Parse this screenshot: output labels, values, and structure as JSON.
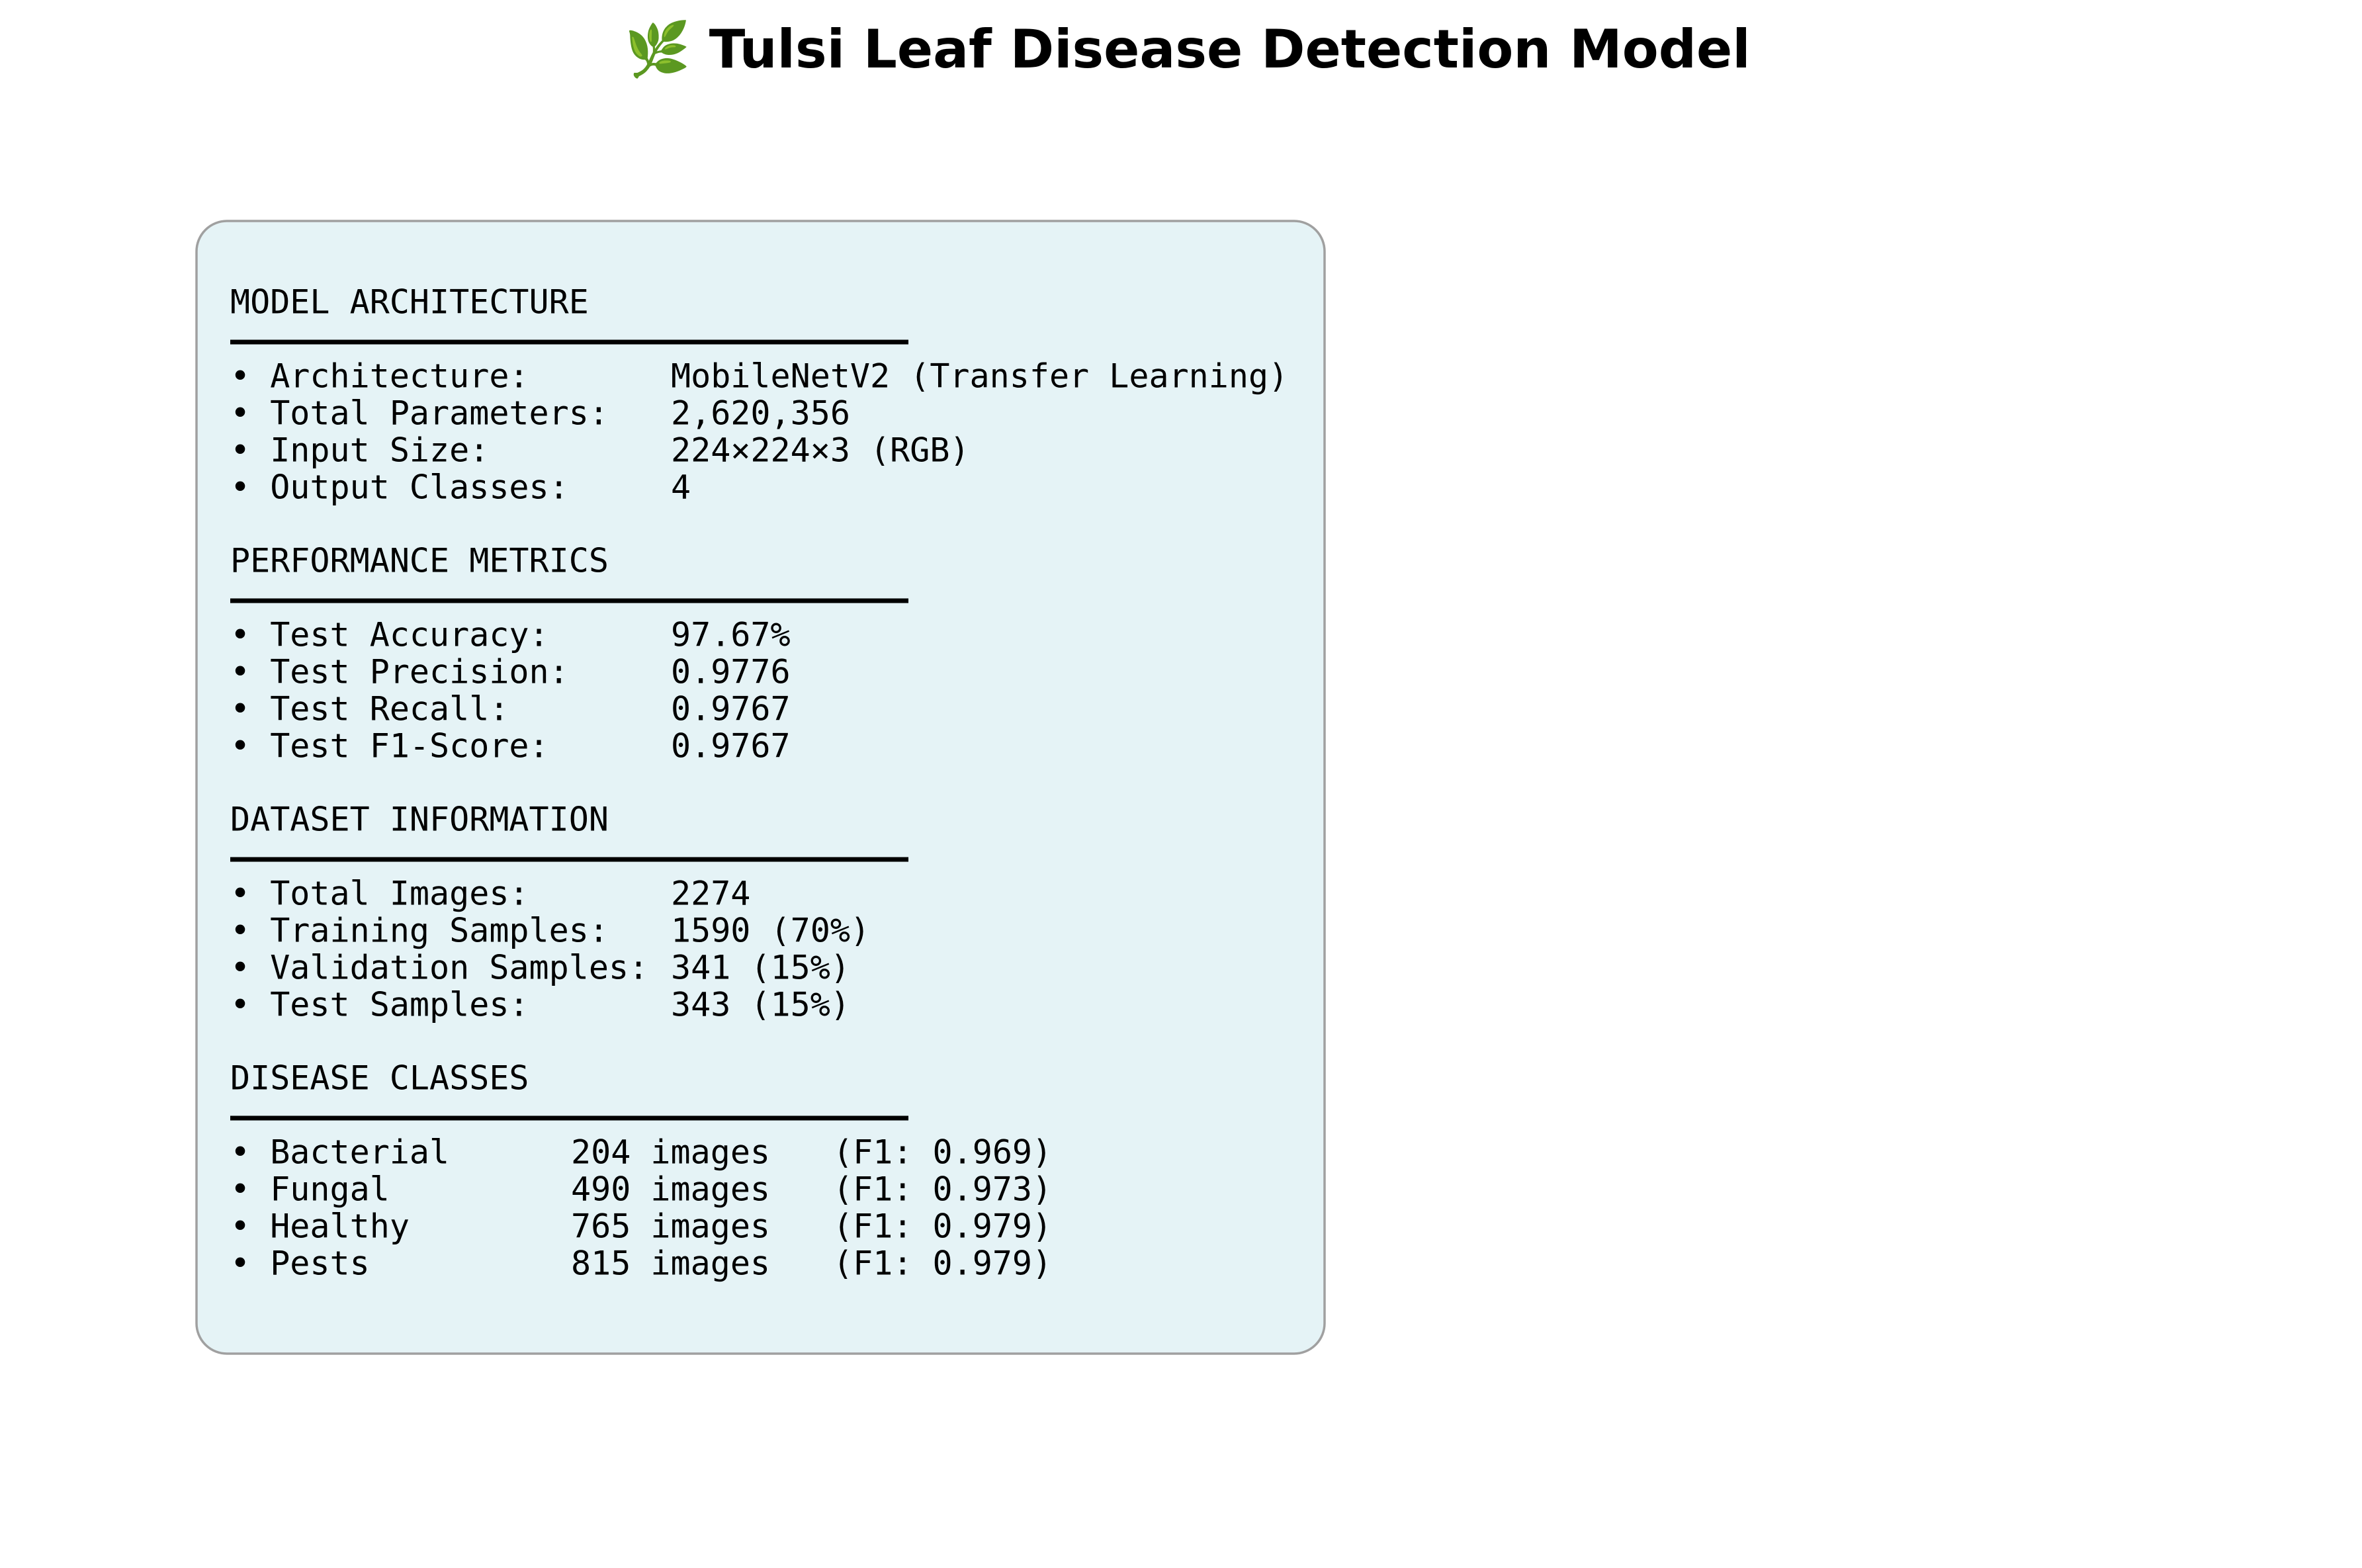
{
  "header": {
    "title": "🌿 Tulsi Leaf Disease Detection Model"
  },
  "sections": [
    {
      "heading": "MODEL ARCHITECTURE",
      "items": [
        [
          "• Architecture:",
          "MobileNetV2 (Transfer Learning)"
        ],
        [
          "• Total Parameters:",
          "2,620,356"
        ],
        [
          "• Input Size:",
          "224×224×3 (RGB)"
        ],
        [
          "• Output Classes:",
          "4"
        ]
      ]
    },
    {
      "heading": "PERFORMANCE METRICS",
      "items": [
        [
          "• Test Accuracy:",
          "97.67%"
        ],
        [
          "• Test Precision:",
          "0.9776"
        ],
        [
          "• Test Recall:",
          "0.9767"
        ],
        [
          "• Test F1-Score:",
          "0.9767"
        ]
      ]
    },
    {
      "heading": "DATASET INFORMATION",
      "items": [
        [
          "• Total Images:",
          "2274"
        ],
        [
          "• Training Samples:",
          "1590 (70%)"
        ],
        [
          "• Validation Samples:",
          "341 (15%)"
        ],
        [
          "• Test Samples:",
          "343 (15%)"
        ]
      ]
    },
    {
      "heading": "DISEASE CLASSES",
      "items": [
        [
          "• Bacterial",
          "204 images",
          "(F1: 0.969)"
        ],
        [
          "• Fungal",
          "490 images",
          "(F1: 0.973)"
        ],
        [
          "• Healthy",
          "765 images",
          "(F1: 0.979)"
        ],
        [
          "• Pests",
          "815 images",
          "(F1: 0.979)"
        ]
      ]
    }
  ]
}
